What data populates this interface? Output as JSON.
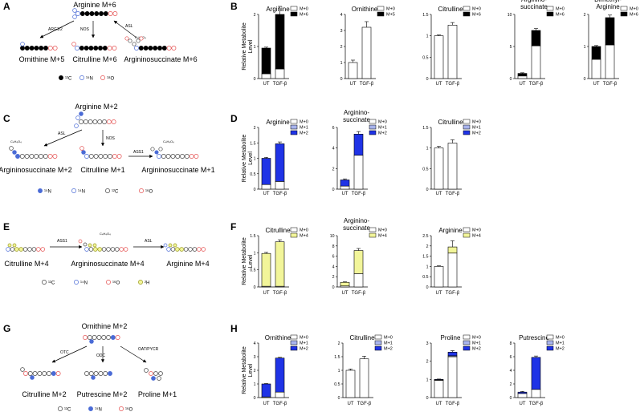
{
  "colors": {
    "black": "#000000",
    "white": "#ffffff",
    "blue": "#1f33e6",
    "lightblue": "#a8b4ee",
    "yellow": "#f2f59a",
    "red": "#e55050",
    "n_blue": "#4a6bd6",
    "deut": "#c8c82a",
    "grey": "#444444"
  },
  "panels": {
    "A": {
      "letter": "A",
      "top": "Arginine M+6",
      "bottom": [
        "Ornithine M+5",
        "Citrulline M+6",
        "Argininosuccinate M+6"
      ],
      "enzymes": [
        "ARG1/2",
        "NOS",
        "ASL"
      ],
      "fumarate": "C₄H₄O₄",
      "legend": [
        "¹²C",
        "¹⁵N",
        "¹⁸O"
      ]
    },
    "C": {
      "letter": "C",
      "top": "Arginine M+2",
      "bottom": [
        "Argininosuccinate M+2",
        "Citrulline M+1",
        "Argininosuccinate M+1"
      ],
      "enzymes": [
        "ASL",
        "NOS",
        "ASS1"
      ],
      "fumarate": "C₄H₄O₄",
      "legend": [
        "¹⁵N",
        "¹⁴N",
        "¹²C",
        "¹⁶O"
      ]
    },
    "E": {
      "letter": "E",
      "labels": [
        "Citrulline M+4",
        "Argininosuccinate M+4",
        "Arginine M+4"
      ],
      "enzymes": [
        "ASS1",
        "ASL"
      ],
      "fumarate": "C₄H₄O₄",
      "legend": [
        "¹²C",
        "¹⁴N",
        "¹⁶O",
        "²H"
      ]
    },
    "G": {
      "letter": "G",
      "top": "Ornithine M+2",
      "bottom": [
        "Citrulline M+2",
        "Putrescine M+2",
        "Proline M+1"
      ],
      "enzymes": [
        "OTC",
        "ODC",
        "OAT/PYCR"
      ],
      "legend": [
        "¹²C",
        "¹⁵N",
        "¹⁶O"
      ]
    }
  },
  "chart_data": [
    {
      "panel": "B",
      "type": "bar",
      "stacked": true,
      "ylabel": "Relative Metabolite Level",
      "categories": [
        "UT",
        "TGF-β"
      ],
      "charts": [
        {
          "title": "Arginine",
          "ylim": [
            0,
            2
          ],
          "ticks": [
            0,
            1,
            2
          ],
          "legend": [
            "M+0",
            "M+6"
          ],
          "series": [
            {
              "name": "M+0",
              "values": [
                0.15,
                0.3
              ]
            },
            {
              "name": "M+6",
              "values": [
                0.8,
                1.7
              ]
            }
          ],
          "err": [
            0.03,
            0.25
          ]
        },
        {
          "title": "Ornithine",
          "ylim": [
            0,
            4
          ],
          "ticks": [
            0,
            1,
            2,
            3,
            4
          ],
          "legend": [
            "M+0",
            "M+5"
          ],
          "series": [
            {
              "name": "M+0",
              "values": [
                1.0,
                3.2
              ]
            },
            {
              "name": "M+5",
              "values": [
                0.0,
                0.0
              ]
            }
          ],
          "err": [
            0.15,
            0.35
          ]
        },
        {
          "title": "Citrulline",
          "ylim": [
            0,
            1.5
          ],
          "ticks": [
            0,
            0.5,
            1.0,
            1.5
          ],
          "legend": [
            "M+0",
            "M+6"
          ],
          "series": [
            {
              "name": "M+0",
              "values": [
                1.0,
                1.25
              ]
            },
            {
              "name": "M+6",
              "values": [
                0.0,
                0.0
              ]
            }
          ],
          "err": [
            0.02,
            0.06
          ]
        },
        {
          "title": "Arginino- succinate",
          "ylim": [
            0,
            10
          ],
          "ticks": [
            0,
            5,
            10
          ],
          "legend": [
            "M+0",
            "M+6"
          ],
          "series": [
            {
              "name": "M+0",
              "values": [
                0.4,
                5.1
              ]
            },
            {
              "name": "M+6",
              "values": [
                0.4,
                2.4
              ]
            }
          ],
          "err": [
            0.1,
            0.3
          ]
        },
        {
          "title": "Dimethyl- Arginine",
          "ylim": [
            0,
            2
          ],
          "ticks": [
            0,
            1,
            2
          ],
          "legend": [
            "M+0",
            "M+6"
          ],
          "series": [
            {
              "name": "M+0",
              "values": [
                0.6,
                1.05
              ]
            },
            {
              "name": "M+6",
              "values": [
                0.4,
                0.85
              ]
            }
          ],
          "err": [
            0.03,
            0.08
          ]
        }
      ]
    },
    {
      "panel": "D",
      "type": "bar",
      "stacked": true,
      "ylabel": "Relative Metabolite Level",
      "categories": [
        "UT",
        "TGF-β"
      ],
      "charts": [
        {
          "title": "Arginine",
          "ylim": [
            0,
            2
          ],
          "ticks": [
            0,
            0.5,
            1.0,
            1.5,
            2.0
          ],
          "legend": [
            "M+0",
            "M+1",
            "M+2"
          ],
          "series": [
            {
              "name": "M+0",
              "values": [
                0.15,
                0.25
              ]
            },
            {
              "name": "M+1",
              "values": [
                0.0,
                0.0
              ]
            },
            {
              "name": "M+2",
              "values": [
                0.85,
                1.22
              ]
            }
          ],
          "err": [
            0.03,
            0.06
          ]
        },
        {
          "title": "Arginino- succinate",
          "ylim": [
            0,
            6
          ],
          "ticks": [
            0,
            2,
            4,
            6
          ],
          "legend": [
            "M+0",
            "M+1",
            "M+2"
          ],
          "series": [
            {
              "name": "M+0",
              "values": [
                0.3,
                3.3
              ]
            },
            {
              "name": "M+1",
              "values": [
                0.0,
                0.0
              ]
            },
            {
              "name": "M+2",
              "values": [
                0.6,
                2.05
              ]
            }
          ],
          "err": [
            0.1,
            0.25
          ]
        },
        {
          "title": "Citrulline",
          "ylim": [
            0,
            1.5
          ],
          "ticks": [
            0,
            0.5,
            1.0,
            1.5
          ],
          "legend": [
            "M+0",
            "M+1",
            "M+2"
          ],
          "series": [
            {
              "name": "M+0",
              "values": [
                1.0,
                1.12
              ]
            },
            {
              "name": "M+1",
              "values": [
                0.0,
                0.0
              ]
            },
            {
              "name": "M+2",
              "values": [
                0.0,
                0.0
              ]
            }
          ],
          "err": [
            0.04,
            0.08
          ]
        }
      ]
    },
    {
      "panel": "F",
      "type": "bar",
      "stacked": true,
      "ylabel": "Relative Metabolite Level",
      "categories": [
        "UT",
        "TGF-β"
      ],
      "charts": [
        {
          "title": "Citrulline",
          "ylim": [
            0,
            1.5
          ],
          "ticks": [
            0,
            0.5,
            1.0,
            1.5
          ],
          "legend": [
            "M+0",
            "M+4"
          ],
          "series": [
            {
              "name": "M+0",
              "values": [
                0.02,
                0.02
              ]
            },
            {
              "name": "M+4",
              "values": [
                0.96,
                1.3
              ]
            }
          ],
          "err": [
            0.03,
            0.06
          ]
        },
        {
          "title": "Arginino- succinate",
          "ylim": [
            0,
            10
          ],
          "ticks": [
            0,
            2,
            4,
            6,
            8,
            10
          ],
          "legend": [
            "M+0",
            "M+4"
          ],
          "series": [
            {
              "name": "M+0",
              "values": [
                0.2,
                2.6
              ]
            },
            {
              "name": "M+4",
              "values": [
                0.7,
                4.5
              ]
            }
          ],
          "err": [
            0.1,
            0.4
          ]
        },
        {
          "title": "Arginine",
          "ylim": [
            0,
            2.5
          ],
          "ticks": [
            0,
            0.5,
            1.0,
            1.5,
            2.0,
            2.5
          ],
          "legend": [
            "M+0",
            "M+4"
          ],
          "series": [
            {
              "name": "M+0",
              "values": [
                1.0,
                1.65
              ]
            },
            {
              "name": "M+4",
              "values": [
                0.0,
                0.3
              ]
            }
          ],
          "err": [
            0.03,
            0.3
          ]
        }
      ]
    },
    {
      "panel": "H",
      "type": "bar",
      "stacked": true,
      "ylabel": "Relative Metabolite Level",
      "categories": [
        "UT",
        "TGF-β"
      ],
      "charts": [
        {
          "title": "Ornithine",
          "ylim": [
            0,
            4
          ],
          "ticks": [
            0,
            1,
            2,
            3,
            4
          ],
          "legend": [
            "M+0",
            "M+1",
            "M+2"
          ],
          "series": [
            {
              "name": "M+0",
              "values": [
                0.05,
                0.4
              ]
            },
            {
              "name": "M+1",
              "values": [
                0.0,
                0.0
              ]
            },
            {
              "name": "M+2",
              "values": [
                0.95,
                2.5
              ]
            }
          ],
          "err": [
            0.03,
            0.05
          ]
        },
        {
          "title": "Citrulline",
          "ylim": [
            0,
            2
          ],
          "ticks": [
            0,
            0.5,
            1.0,
            1.5,
            2.0
          ],
          "legend": [
            "M+0",
            "M+1",
            "M+2"
          ],
          "series": [
            {
              "name": "M+0",
              "values": [
                1.0,
                1.42
              ]
            },
            {
              "name": "M+1",
              "values": [
                0.0,
                0.0
              ]
            },
            {
              "name": "M+2",
              "values": [
                0.0,
                0.0
              ]
            }
          ],
          "err": [
            0.05,
            0.1
          ]
        },
        {
          "title": "Proline",
          "ylim": [
            0,
            3
          ],
          "ticks": [
            0,
            1,
            2,
            3
          ],
          "legend": [
            "M+0",
            "M+1",
            "M+2"
          ],
          "series": [
            {
              "name": "M+0",
              "values": [
                0.95,
                2.25
              ]
            },
            {
              "name": "M+1",
              "values": [
                0.02,
                0.05
              ]
            },
            {
              "name": "M+2",
              "values": [
                0.03,
                0.2
              ]
            }
          ],
          "err": [
            0.02,
            0.08
          ]
        },
        {
          "title": "Putrescine",
          "ylim": [
            0,
            8
          ],
          "ticks": [
            0,
            2,
            4,
            6,
            8
          ],
          "legend": [
            "M+0",
            "M+1",
            "M+2"
          ],
          "series": [
            {
              "name": "M+0",
              "values": [
                0.6,
                1.2
              ]
            },
            {
              "name": "M+1",
              "values": [
                0.0,
                0.0
              ]
            },
            {
              "name": "M+2",
              "values": [
                0.2,
                4.7
              ]
            }
          ],
          "err": [
            0.1,
            0.2
          ]
        }
      ]
    }
  ]
}
